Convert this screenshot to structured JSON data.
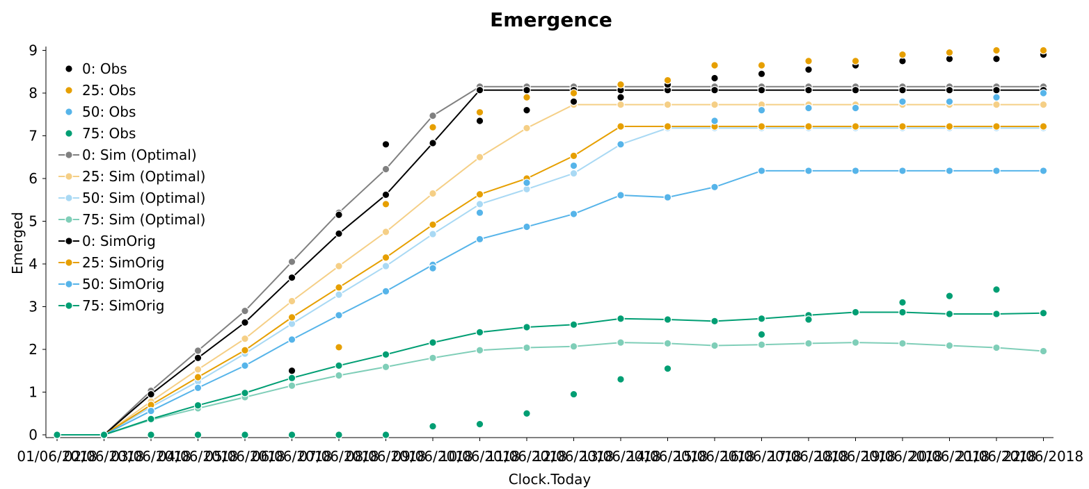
{
  "chart_data": {
    "type": "line",
    "title": "Emergence",
    "xlabel": "Clock.Today",
    "ylabel": "Emerged",
    "ylim": [
      0,
      9
    ],
    "yticks": [
      0,
      1,
      2,
      3,
      4,
      5,
      6,
      7,
      8,
      9
    ],
    "grid": false,
    "legend_position": "top-left",
    "categories": [
      "01/06/2018",
      "02/06/2018",
      "03/06/2018",
      "04/06/2018",
      "05/06/2018",
      "06/06/2018",
      "07/06/2018",
      "08/06/2018",
      "09/06/2018",
      "10/06/2018",
      "11/06/2018",
      "12/06/2018",
      "13/06/2018",
      "14/06/2018",
      "15/06/2018",
      "16/06/2018",
      "17/06/2018",
      "18/06/2018",
      "19/06/2018",
      "20/06/2018",
      "21/06/2018",
      "22/06/2018"
    ],
    "series": [
      {
        "name": "0: Obs",
        "style": "markers",
        "color": "#000000",
        "values": [
          null,
          null,
          null,
          null,
          null,
          1.5,
          5.15,
          6.8,
          null,
          7.35,
          7.6,
          7.8,
          7.9,
          8.2,
          8.35,
          8.45,
          8.55,
          8.65,
          8.75,
          8.8,
          8.8,
          8.9
        ]
      },
      {
        "name": "25: Obs",
        "style": "markers",
        "color": "#E69F00",
        "values": [
          null,
          null,
          null,
          null,
          null,
          null,
          2.05,
          5.4,
          7.2,
          7.55,
          7.9,
          8.0,
          8.2,
          8.3,
          8.65,
          8.65,
          8.75,
          8.75,
          8.9,
          8.95,
          9.0,
          9.0
        ]
      },
      {
        "name": "50: Obs",
        "style": "markers",
        "color": "#56B4E9",
        "values": [
          null,
          null,
          null,
          null,
          null,
          null,
          null,
          null,
          3.9,
          5.2,
          5.9,
          6.3,
          6.8,
          null,
          7.35,
          7.6,
          7.65,
          7.65,
          7.8,
          7.8,
          7.9,
          8.0
        ]
      },
      {
        "name": "75: Obs",
        "style": "markers",
        "color": "#009E73",
        "values": [
          null,
          null,
          0,
          0,
          0,
          0,
          0,
          0,
          0.2,
          0.25,
          0.5,
          0.95,
          1.3,
          1.55,
          null,
          2.35,
          2.7,
          null,
          3.1,
          3.25,
          3.4,
          null
        ]
      },
      {
        "name": "0: Sim (Optimal)",
        "style": "line",
        "color": "#808080",
        "values": [
          0,
          0,
          1.03,
          1.97,
          2.9,
          4.05,
          5.2,
          6.22,
          7.47,
          8.15,
          8.15,
          8.15,
          8.15,
          8.15,
          8.15,
          8.15,
          8.15,
          8.15,
          8.15,
          8.15,
          8.15,
          8.15
        ]
      },
      {
        "name": "25: Sim (Optimal)",
        "style": "line",
        "color": "#F5CF86",
        "values": [
          0,
          0,
          0.78,
          1.53,
          2.25,
          3.13,
          3.95,
          4.75,
          5.65,
          6.5,
          7.18,
          7.73,
          7.73,
          7.73,
          7.73,
          7.73,
          7.73,
          7.73,
          7.73,
          7.73,
          7.73,
          7.73
        ]
      },
      {
        "name": "50: Sim (Optimal)",
        "style": "line",
        "color": "#A9D9F4",
        "values": [
          0,
          0,
          0.65,
          1.25,
          1.9,
          2.6,
          3.28,
          3.95,
          4.7,
          5.4,
          5.75,
          6.12,
          6.8,
          7.18,
          7.18,
          7.18,
          7.18,
          7.18,
          7.18,
          7.18,
          7.18,
          7.18
        ]
      },
      {
        "name": "75: Sim (Optimal)",
        "style": "line",
        "color": "#7FCEB8",
        "values": [
          0,
          0,
          0.35,
          0.62,
          0.88,
          1.15,
          1.39,
          1.59,
          1.8,
          1.98,
          2.04,
          2.07,
          2.16,
          2.14,
          2.09,
          2.11,
          2.14,
          2.16,
          2.14,
          2.09,
          2.04,
          1.96
        ]
      },
      {
        "name": "0: SimOrig",
        "style": "line",
        "color": "#000000",
        "values": [
          0,
          0,
          0.95,
          1.8,
          2.63,
          3.68,
          4.71,
          5.62,
          6.83,
          8.07,
          8.07,
          8.07,
          8.07,
          8.07,
          8.07,
          8.07,
          8.07,
          8.07,
          8.07,
          8.07,
          8.07,
          8.07
        ]
      },
      {
        "name": "25: SimOrig",
        "style": "line",
        "color": "#E69F00",
        "values": [
          0,
          0,
          0.7,
          1.35,
          1.98,
          2.75,
          3.45,
          4.15,
          4.92,
          5.63,
          6.0,
          6.53,
          7.22,
          7.22,
          7.22,
          7.22,
          7.22,
          7.22,
          7.22,
          7.22,
          7.22,
          7.22
        ]
      },
      {
        "name": "50: SimOrig",
        "style": "line",
        "color": "#56B4E9",
        "values": [
          0,
          0,
          0.56,
          1.1,
          1.62,
          2.23,
          2.8,
          3.36,
          3.98,
          4.58,
          4.87,
          5.17,
          5.61,
          5.56,
          5.8,
          6.18,
          6.18,
          6.18,
          6.18,
          6.18,
          6.18,
          6.18
        ]
      },
      {
        "name": "75: SimOrig",
        "style": "line",
        "color": "#009E73",
        "values": [
          0,
          0,
          0.37,
          0.69,
          0.98,
          1.33,
          1.62,
          1.88,
          2.16,
          2.4,
          2.52,
          2.58,
          2.72,
          2.7,
          2.66,
          2.72,
          2.8,
          2.87,
          2.87,
          2.83,
          2.83,
          2.85
        ]
      }
    ]
  }
}
